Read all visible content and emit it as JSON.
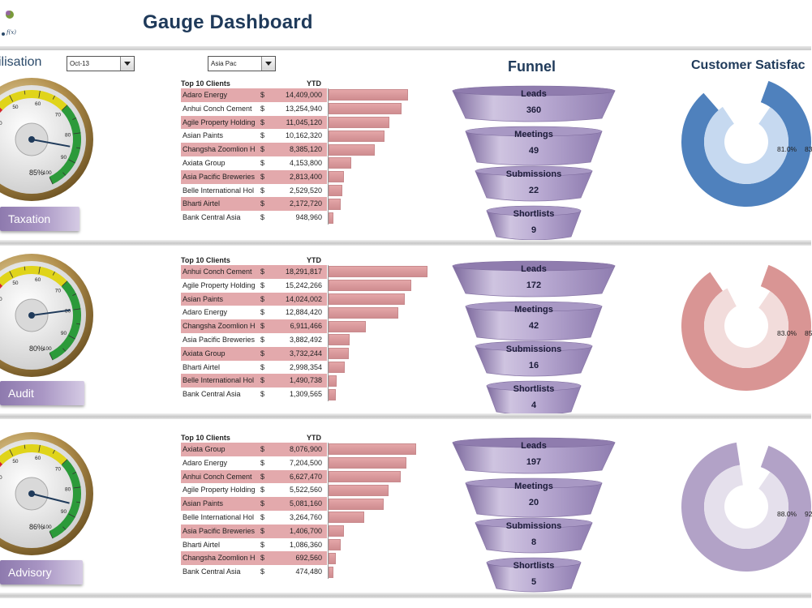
{
  "header": {
    "title": "Gauge Dashboard"
  },
  "filters": {
    "label": "ilisation",
    "period_value": "Oct-13",
    "region_value": "Asia Pac"
  },
  "titles": {
    "funnel": "Funnel",
    "satisfaction": "Customer Satisfac"
  },
  "sections": [
    {
      "name": "Taxation",
      "gauge": {
        "percent_label": "85%",
        "value": 85,
        "ticks": [
          "40",
          "50",
          "60",
          "70",
          "80",
          "90",
          "100"
        ]
      },
      "clients_header": "Top 10 Clients",
      "ytd_header": "YTD",
      "clients": [
        {
          "name": "Adaro Energy",
          "cur": "$",
          "value": "14,409,000",
          "n": 14409000
        },
        {
          "name": "Anhui Conch Cement",
          "cur": "$",
          "value": "13,254,940",
          "n": 13254940
        },
        {
          "name": "Agile Property Holding",
          "cur": "$",
          "value": "11,045,120",
          "n": 11045120
        },
        {
          "name": "Asian Paints",
          "cur": "$",
          "value": "10,162,320",
          "n": 10162320
        },
        {
          "name": "Changsha Zoomlion H",
          "cur": "$",
          "value": "8,385,120",
          "n": 8385120
        },
        {
          "name": "Axiata Group",
          "cur": "$",
          "value": "4,153,800",
          "n": 4153800
        },
        {
          "name": "Asia Pacific Breweries",
          "cur": "$",
          "value": "2,813,400",
          "n": 2813400
        },
        {
          "name": "Belle International Hol",
          "cur": "$",
          "value": "2,529,520",
          "n": 2529520
        },
        {
          "name": "Bharti Airtel",
          "cur": "$",
          "value": "2,172,720",
          "n": 2172720
        },
        {
          "name": "Bank Central Asia",
          "cur": "$",
          "value": "948,960",
          "n": 948960
        }
      ],
      "funnel": [
        {
          "label": "Leads",
          "value": "360"
        },
        {
          "label": "Meetings",
          "value": "49"
        },
        {
          "label": "Submissions",
          "value": "22"
        },
        {
          "label": "Shortlists",
          "value": "9"
        }
      ],
      "satisfaction": {
        "inner_label": "81.0%",
        "outer_label": "83",
        "inner": 81,
        "outer": 83,
        "color": "#4f81bd",
        "light": "#c6d9f0"
      }
    },
    {
      "name": "Audit",
      "gauge": {
        "percent_label": "80%",
        "value": 80,
        "ticks": [
          "40",
          "50",
          "60",
          "70",
          "80",
          "90",
          "100"
        ]
      },
      "clients_header": "Top 10 Clients",
      "ytd_header": "YTD",
      "clients": [
        {
          "name": "Anhui Conch Cement",
          "cur": "$",
          "value": "18,291,817",
          "n": 18291817
        },
        {
          "name": "Agile Property Holding",
          "cur": "$",
          "value": "15,242,266",
          "n": 15242266
        },
        {
          "name": "Asian Paints",
          "cur": "$",
          "value": "14,024,002",
          "n": 14024002
        },
        {
          "name": "Adaro Energy",
          "cur": "$",
          "value": "12,884,420",
          "n": 12884420
        },
        {
          "name": "Changsha Zoomlion H",
          "cur": "$",
          "value": "6,911,466",
          "n": 6911466
        },
        {
          "name": "Asia Pacific Breweries",
          "cur": "$",
          "value": "3,882,492",
          "n": 3882492
        },
        {
          "name": "Axiata Group",
          "cur": "$",
          "value": "3,732,244",
          "n": 3732244
        },
        {
          "name": "Bharti Airtel",
          "cur": "$",
          "value": "2,998,354",
          "n": 2998354
        },
        {
          "name": "Belle International Hol",
          "cur": "$",
          "value": "1,490,738",
          "n": 1490738
        },
        {
          "name": "Bank Central Asia",
          "cur": "$",
          "value": "1,309,565",
          "n": 1309565
        }
      ],
      "funnel": [
        {
          "label": "Leads",
          "value": "172"
        },
        {
          "label": "Meetings",
          "value": "42"
        },
        {
          "label": "Submissions",
          "value": "16"
        },
        {
          "label": "Shortlists",
          "value": "4"
        }
      ],
      "satisfaction": {
        "inner_label": "83.0%",
        "outer_label": "85",
        "inner": 83,
        "outer": 85,
        "color": "#d99594",
        "light": "#f2dcdb"
      }
    },
    {
      "name": "Advisory",
      "gauge": {
        "percent_label": "86%",
        "value": 86,
        "ticks": [
          "40",
          "50",
          "60",
          "70",
          "80",
          "90",
          "100"
        ]
      },
      "clients_header": "Top 10 Clients",
      "ytd_header": "YTD",
      "clients": [
        {
          "name": "Axiata Group",
          "cur": "$",
          "value": "8,076,900",
          "n": 8076900
        },
        {
          "name": "Adaro Energy",
          "cur": "$",
          "value": "7,204,500",
          "n": 7204500
        },
        {
          "name": "Anhui Conch Cement",
          "cur": "$",
          "value": "6,627,470",
          "n": 6627470
        },
        {
          "name": "Agile Property Holding",
          "cur": "$",
          "value": "5,522,560",
          "n": 5522560
        },
        {
          "name": "Asian Paints",
          "cur": "$",
          "value": "5,081,160",
          "n": 5081160
        },
        {
          "name": "Belle International Hol",
          "cur": "$",
          "value": "3,264,760",
          "n": 3264760
        },
        {
          "name": "Asia Pacific Breweries",
          "cur": "$",
          "value": "1,406,700",
          "n": 1406700
        },
        {
          "name": "Bharti Airtel",
          "cur": "$",
          "value": "1,086,360",
          "n": 1086360
        },
        {
          "name": "Changsha Zoomlion H",
          "cur": "$",
          "value": "692,560",
          "n": 692560
        },
        {
          "name": "Bank Central Asia",
          "cur": "$",
          "value": "474,480",
          "n": 474480
        }
      ],
      "funnel": [
        {
          "label": "Leads",
          "value": "197"
        },
        {
          "label": "Meetings",
          "value": "20"
        },
        {
          "label": "Submissions",
          "value": "8"
        },
        {
          "label": "Shortlists",
          "value": "5"
        }
      ],
      "satisfaction": {
        "inner_label": "88.0%",
        "outer_label": "92",
        "inner": 88,
        "outer": 92,
        "color": "#b2a2c7",
        "light": "#e5e0ec"
      }
    }
  ]
}
